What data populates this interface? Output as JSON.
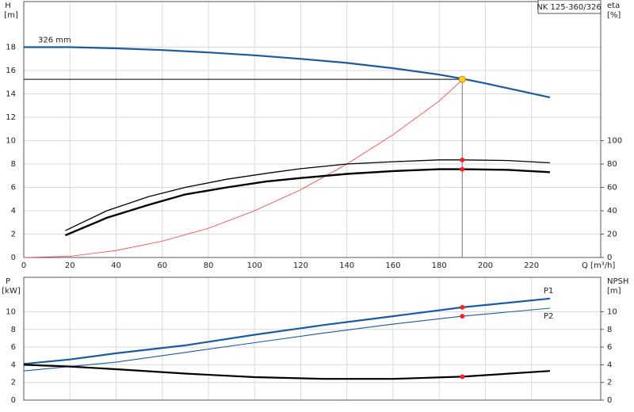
{
  "chart_data": [
    {
      "type": "line",
      "model_label": "NK 125-360/326",
      "y_label": "H",
      "y_unit": "[m]",
      "y2_label": "eta",
      "y2_unit": "[%]",
      "x_label": "Q [m³/h]",
      "xlim": [
        0,
        250
      ],
      "xticks": [
        0,
        20,
        40,
        60,
        80,
        100,
        120,
        140,
        160,
        180,
        200,
        220
      ],
      "ylim": [
        0,
        21.9
      ],
      "yticks": [
        0,
        2,
        4,
        6,
        8,
        10,
        12,
        14,
        16,
        18
      ],
      "y2lim": [
        0,
        219
      ],
      "y2ticks": [
        0,
        20,
        40,
        60,
        80,
        100
      ],
      "grid": true,
      "series": [
        {
          "name": "326 mm",
          "color": "#1a5aa0",
          "width": 2.2,
          "x": [
            0,
            20,
            40,
            60,
            80,
            100,
            120,
            140,
            160,
            180,
            190,
            200,
            228
          ],
          "values": [
            18,
            18,
            17.9,
            17.75,
            17.55,
            17.3,
            17,
            16.65,
            16.2,
            15.65,
            15.3,
            14.9,
            13.7
          ]
        },
        {
          "color": "#ff3b3b",
          "width": 0.8,
          "x": [
            0,
            20,
            40,
            60,
            80,
            100,
            120,
            140,
            160,
            180,
            190
          ],
          "values": [
            0,
            0.1,
            0.6,
            1.4,
            2.5,
            4.0,
            5.8,
            8.0,
            10.5,
            13.4,
            15.2
          ]
        },
        {
          "color": "#000000",
          "width": 1.3,
          "axis": "y2",
          "x": [
            18,
            36,
            54,
            70,
            88,
            105,
            120,
            140,
            160,
            180,
            190,
            210,
            228
          ],
          "values": [
            23,
            40,
            52,
            60,
            67,
            72,
            76,
            80,
            82,
            83.5,
            83.5,
            83,
            81
          ]
        },
        {
          "color": "#000000",
          "width": 2.4,
          "axis": "y2",
          "x": [
            18,
            36,
            54,
            70,
            88,
            105,
            120,
            140,
            160,
            180,
            190,
            210,
            228
          ],
          "values": [
            19,
            34,
            45,
            54,
            60,
            65,
            68,
            71.5,
            74,
            75.5,
            75.5,
            75,
            73
          ]
        },
        {
          "marker": "dot",
          "color": "#ffd21f",
          "guides": true,
          "x": [
            190
          ],
          "values": [
            15.25
          ]
        },
        {
          "marker": "dot",
          "color": "#ff2020",
          "axis": "y2",
          "x": [
            190,
            190
          ],
          "values": [
            83.5,
            75.5
          ]
        }
      ]
    },
    {
      "type": "line",
      "y_label": "P",
      "y_unit": "[kW]",
      "y2_label": "NPSH",
      "y2_unit": "[m]",
      "xlim": [
        0,
        250
      ],
      "ylim": [
        0,
        13.9
      ],
      "yticks": [
        0,
        2,
        4,
        6,
        8,
        10
      ],
      "y2lim": [
        0,
        13.9
      ],
      "y2ticks": [
        0,
        2,
        4,
        6,
        8,
        10
      ],
      "grid": true,
      "series": [
        {
          "name": "P1",
          "color": "#1a5aa0",
          "width": 2.2,
          "x": [
            0,
            20,
            40,
            70,
            100,
            130,
            160,
            190,
            228
          ],
          "values": [
            4.1,
            4.6,
            5.3,
            6.2,
            7.4,
            8.5,
            9.5,
            10.5,
            11.5
          ]
        },
        {
          "name": "P2",
          "color": "#1a5aa0",
          "width": 1.1,
          "x": [
            0,
            20,
            40,
            70,
            100,
            130,
            160,
            190,
            228
          ],
          "values": [
            3.3,
            3.8,
            4.3,
            5.4,
            6.5,
            7.6,
            8.6,
            9.5,
            10.4
          ]
        },
        {
          "color": "#000000",
          "width": 2.2,
          "axis": "y2",
          "x": [
            0,
            20,
            40,
            70,
            100,
            130,
            160,
            190,
            228
          ],
          "values": [
            4.0,
            3.8,
            3.5,
            3.0,
            2.6,
            2.4,
            2.4,
            2.65,
            3.3
          ]
        },
        {
          "marker": "dot",
          "color": "#ff2020",
          "x": [
            190,
            190
          ],
          "values": [
            10.5,
            9.5
          ]
        },
        {
          "marker": "dot",
          "color": "#ff2020",
          "axis": "y2",
          "x": [
            190
          ],
          "values": [
            2.65
          ]
        }
      ]
    }
  ]
}
